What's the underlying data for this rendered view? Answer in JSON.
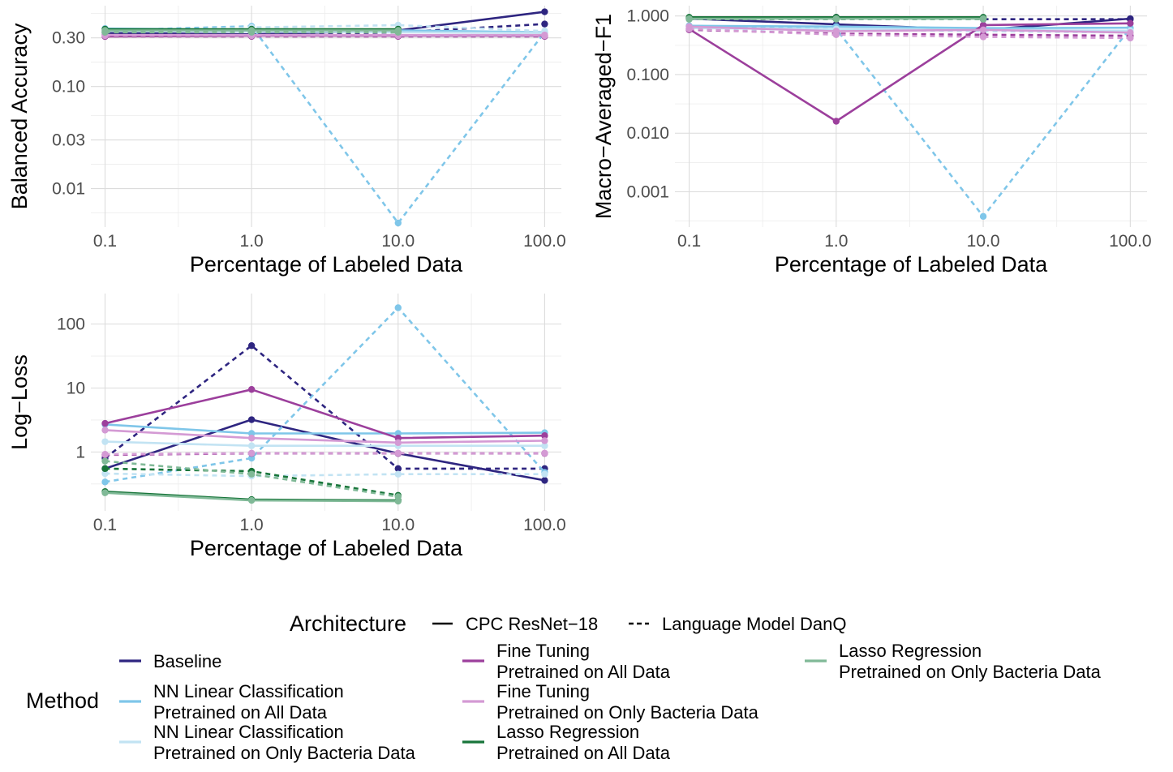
{
  "colors": {
    "Baseline": "#2e2580",
    "NN Linear Classification Pretrained on All Data": "#7fc6e9",
    "NN Linear Classification Pretrained on Only Bacteria Data": "#c2e3f3",
    "Fine Tuning Pretrained on All Data": "#9c3f9c",
    "Fine Tuning Pretrained on Only Bacteria Data": "#d49ad4",
    "Lasso Regression Pretrained on All Data": "#18753a",
    "Lasso Regression Pretrained on Only Bacteria Data": "#80b997"
  },
  "legend": {
    "architecture_title": "Architecture",
    "architecture_items": [
      {
        "label": "CPC ResNet−18",
        "dash": "solid"
      },
      {
        "label": "Language Model DanQ",
        "dash": "dashed"
      }
    ],
    "method_title": "Method",
    "method_items": [
      {
        "key": "Baseline",
        "lines": [
          "Baseline"
        ]
      },
      {
        "key": "NN Linear Classification Pretrained on All Data",
        "lines": [
          "NN Linear Classification",
          "Pretrained on All Data"
        ]
      },
      {
        "key": "NN Linear Classification Pretrained on Only Bacteria Data",
        "lines": [
          "NN Linear Classification",
          "Pretrained on Only Bacteria Data"
        ]
      },
      {
        "key": "Fine Tuning Pretrained on All Data",
        "lines": [
          "Fine Tuning",
          "Pretrained on All Data"
        ]
      },
      {
        "key": "Fine Tuning Pretrained on Only Bacteria Data",
        "lines": [
          "Fine Tuning",
          "Pretrained on Only Bacteria Data"
        ]
      },
      {
        "key": "Lasso Regression Pretrained on All Data",
        "lines": [
          "Lasso Regression",
          "Pretrained on All Data"
        ]
      },
      {
        "key": "Lasso Regression Pretrained on Only Bacteria Data",
        "lines": [
          "Lasso Regression",
          "Pretrained on Only Bacteria Data"
        ]
      }
    ]
  },
  "chart_data": [
    {
      "type": "line",
      "xlabel": "Percentage of Labeled Data",
      "ylabel": "Balanced Accuracy",
      "xscale": "log",
      "yscale": "log",
      "xlim": [
        0.08,
        130
      ],
      "ylim": [
        0.0042,
        0.62
      ],
      "xticks": [
        0.1,
        1,
        10,
        100
      ],
      "xtick_labels": [
        "0.1",
        "1.0",
        "10.0",
        "100.0"
      ],
      "yticks": [
        0.01,
        0.03,
        0.1,
        0.3
      ],
      "ytick_labels": [
        "0.01",
        "0.03",
        "0.10",
        "0.30"
      ],
      "grid": true,
      "series": [
        {
          "method": "Baseline",
          "arch": "CPC ResNet−18",
          "x": [
            0.1,
            1,
            10,
            100
          ],
          "y": [
            0.335,
            0.325,
            0.355,
            0.54
          ]
        },
        {
          "method": "Baseline",
          "arch": "Language Model DanQ",
          "x": [
            0.1,
            1,
            10,
            100
          ],
          "y": [
            0.325,
            0.32,
            0.34,
            0.41
          ]
        },
        {
          "method": "NN Linear Classification Pretrained on All Data",
          "arch": "CPC ResNet−18",
          "x": [
            0.1,
            1,
            10,
            100
          ],
          "y": [
            0.37,
            0.36,
            0.355,
            0.34
          ]
        },
        {
          "method": "NN Linear Classification Pretrained on All Data",
          "arch": "Language Model DanQ",
          "x": [
            0.1,
            1,
            10,
            100
          ],
          "y": [
            0.355,
            0.39,
            0.0046,
            0.34
          ]
        },
        {
          "method": "NN Linear Classification Pretrained on Only Bacteria Data",
          "arch": "CPC ResNet−18",
          "x": [
            0.1,
            1,
            10,
            100
          ],
          "y": [
            0.35,
            0.345,
            0.34,
            0.335
          ]
        },
        {
          "method": "NN Linear Classification Pretrained on Only Bacteria Data",
          "arch": "Language Model DanQ",
          "x": [
            0.1,
            1,
            10,
            100
          ],
          "y": [
            0.34,
            0.38,
            0.4,
            0.35
          ]
        },
        {
          "method": "Fine Tuning Pretrained on All Data",
          "arch": "CPC ResNet−18",
          "x": [
            0.1,
            1,
            10,
            100
          ],
          "y": [
            0.31,
            0.315,
            0.315,
            0.315
          ]
        },
        {
          "method": "Fine Tuning Pretrained on All Data",
          "arch": "Language Model DanQ",
          "x": [
            0.1,
            1,
            10,
            100
          ],
          "y": [
            0.31,
            0.31,
            0.31,
            0.31
          ]
        },
        {
          "method": "Fine Tuning Pretrained on Only Bacteria Data",
          "arch": "CPC ResNet−18",
          "x": [
            0.1,
            1,
            10,
            100
          ],
          "y": [
            0.32,
            0.32,
            0.32,
            0.32
          ]
        },
        {
          "method": "Fine Tuning Pretrained on Only Bacteria Data",
          "arch": "Language Model DanQ",
          "x": [
            0.1,
            1,
            10,
            100
          ],
          "y": [
            0.315,
            0.315,
            0.315,
            0.315
          ]
        },
        {
          "method": "Lasso Regression Pretrained on All Data",
          "arch": "CPC ResNet−18",
          "x": [
            0.1,
            1,
            10
          ],
          "y": [
            0.365,
            0.365,
            0.365
          ]
        },
        {
          "method": "Lasso Regression Pretrained on All Data",
          "arch": "Language Model DanQ",
          "x": [
            0.1,
            1,
            10
          ],
          "y": [
            0.345,
            0.345,
            0.35
          ]
        },
        {
          "method": "Lasso Regression Pretrained on Only Bacteria Data",
          "arch": "CPC ResNet−18",
          "x": [
            0.1,
            1,
            10
          ],
          "y": [
            0.355,
            0.355,
            0.355
          ]
        },
        {
          "method": "Lasso Regression Pretrained on Only Bacteria Data",
          "arch": "Language Model DanQ",
          "x": [
            0.1,
            1,
            10
          ],
          "y": [
            0.34,
            0.34,
            0.34
          ]
        }
      ]
    },
    {
      "type": "line",
      "xlabel": "Percentage of Labeled Data",
      "ylabel": "Macro−Averaged−F1",
      "xscale": "log",
      "yscale": "log",
      "xlim": [
        0.08,
        130
      ],
      "ylim": [
        0.00025,
        1.5
      ],
      "xticks": [
        0.1,
        1,
        10,
        100
      ],
      "xtick_labels": [
        "0.1",
        "1.0",
        "10.0",
        "100.0"
      ],
      "yticks": [
        0.001,
        0.01,
        0.1,
        1
      ],
      "ytick_labels": [
        "0.001",
        "0.010",
        "0.100",
        "1.000"
      ],
      "grid": true,
      "series": [
        {
          "method": "Baseline",
          "arch": "CPC ResNet−18",
          "x": [
            0.1,
            1,
            10,
            100
          ],
          "y": [
            0.9,
            0.72,
            0.58,
            0.9
          ]
        },
        {
          "method": "Baseline",
          "arch": "Language Model DanQ",
          "x": [
            0.1,
            1,
            10,
            100
          ],
          "y": [
            0.92,
            0.95,
            0.88,
            0.88
          ]
        },
        {
          "method": "NN Linear Classification Pretrained on All Data",
          "arch": "CPC ResNet−18",
          "x": [
            0.1,
            1,
            10,
            100
          ],
          "y": [
            0.68,
            0.66,
            0.62,
            0.63
          ]
        },
        {
          "method": "NN Linear Classification Pretrained on All Data",
          "arch": "Language Model DanQ",
          "x": [
            0.1,
            1,
            10,
            100
          ],
          "y": [
            0.68,
            0.6,
            0.00038,
            0.62
          ]
        },
        {
          "method": "NN Linear Classification Pretrained on Only Bacteria Data",
          "arch": "CPC ResNet−18",
          "x": [
            0.1,
            1,
            10,
            100
          ],
          "y": [
            0.62,
            0.6,
            0.58,
            0.56
          ]
        },
        {
          "method": "NN Linear Classification Pretrained on Only Bacteria Data",
          "arch": "Language Model DanQ",
          "x": [
            0.1,
            1,
            10,
            100
          ],
          "y": [
            0.6,
            0.58,
            0.55,
            0.52
          ]
        },
        {
          "method": "Fine Tuning Pretrained on All Data",
          "arch": "CPC ResNet−18",
          "x": [
            0.1,
            1,
            10,
            100
          ],
          "y": [
            0.6,
            0.016,
            0.7,
            0.75
          ]
        },
        {
          "method": "Fine Tuning Pretrained on All Data",
          "arch": "Language Model DanQ",
          "x": [
            0.1,
            1,
            10,
            100
          ],
          "y": [
            0.58,
            0.5,
            0.48,
            0.46
          ]
        },
        {
          "method": "Fine Tuning Pretrained on Only Bacteria Data",
          "arch": "CPC ResNet−18",
          "x": [
            0.1,
            1,
            10,
            100
          ],
          "y": [
            0.66,
            0.55,
            0.58,
            0.52
          ]
        },
        {
          "method": "Fine Tuning Pretrained on Only Bacteria Data",
          "arch": "Language Model DanQ",
          "x": [
            0.1,
            1,
            10,
            100
          ],
          "y": [
            0.6,
            0.48,
            0.44,
            0.42
          ]
        },
        {
          "method": "Lasso Regression Pretrained on All Data",
          "arch": "CPC ResNet−18",
          "x": [
            0.1,
            1,
            10
          ],
          "y": [
            0.95,
            0.95,
            0.95
          ]
        },
        {
          "method": "Lasso Regression Pretrained on All Data",
          "arch": "Language Model DanQ",
          "x": [
            0.1,
            1,
            10
          ],
          "y": [
            0.93,
            0.93,
            0.93
          ]
        },
        {
          "method": "Lasso Regression Pretrained on Only Bacteria Data",
          "arch": "CPC ResNet−18",
          "x": [
            0.1,
            1,
            10
          ],
          "y": [
            0.9,
            0.9,
            0.9
          ]
        },
        {
          "method": "Lasso Regression Pretrained on Only Bacteria Data",
          "arch": "Language Model DanQ",
          "x": [
            0.1,
            1,
            10
          ],
          "y": [
            0.88,
            0.88,
            0.88
          ]
        }
      ]
    },
    {
      "type": "line",
      "xlabel": "Percentage of Labeled Data",
      "ylabel": "Log−Loss",
      "xscale": "log",
      "yscale": "log",
      "xlim": [
        0.08,
        130
      ],
      "ylim": [
        0.12,
        300
      ],
      "xticks": [
        0.1,
        1,
        10,
        100
      ],
      "xtick_labels": [
        "0.1",
        "1.0",
        "10.0",
        "100.0"
      ],
      "yticks": [
        1,
        10,
        100
      ],
      "ytick_labels": [
        "1",
        "10",
        "100"
      ],
      "grid": true,
      "series": [
        {
          "method": "Baseline",
          "arch": "CPC ResNet−18",
          "x": [
            0.1,
            1,
            10,
            100
          ],
          "y": [
            0.55,
            3.2,
            0.95,
            0.36
          ]
        },
        {
          "method": "Baseline",
          "arch": "Language Model DanQ",
          "x": [
            0.1,
            1,
            10,
            100
          ],
          "y": [
            0.8,
            46,
            0.55,
            0.55
          ]
        },
        {
          "method": "NN Linear Classification Pretrained on All Data",
          "arch": "CPC ResNet−18",
          "x": [
            0.1,
            1,
            10,
            100
          ],
          "y": [
            2.7,
            1.95,
            1.95,
            2.0
          ]
        },
        {
          "method": "NN Linear Classification Pretrained on All Data",
          "arch": "Language Model DanQ",
          "x": [
            0.1,
            1,
            10,
            100
          ],
          "y": [
            0.34,
            0.8,
            180,
            0.48
          ]
        },
        {
          "method": "NN Linear Classification Pretrained on Only Bacteria Data",
          "arch": "CPC ResNet−18",
          "x": [
            0.1,
            1,
            10,
            100
          ],
          "y": [
            1.45,
            1.25,
            1.25,
            1.25
          ]
        },
        {
          "method": "NN Linear Classification Pretrained on Only Bacteria Data",
          "arch": "Language Model DanQ",
          "x": [
            0.1,
            1,
            10,
            100
          ],
          "y": [
            0.46,
            0.42,
            0.45,
            0.45
          ]
        },
        {
          "method": "Fine Tuning Pretrained on All Data",
          "arch": "CPC ResNet−18",
          "x": [
            0.1,
            1,
            10,
            100
          ],
          "y": [
            2.8,
            9.5,
            1.65,
            1.8
          ]
        },
        {
          "method": "Fine Tuning Pretrained on All Data",
          "arch": "Language Model DanQ",
          "x": [
            0.1,
            1,
            10,
            100
          ],
          "y": [
            0.9,
            0.95,
            0.95,
            0.95
          ]
        },
        {
          "method": "Fine Tuning Pretrained on Only Bacteria Data",
          "arch": "CPC ResNet−18",
          "x": [
            0.1,
            1,
            10,
            100
          ],
          "y": [
            2.2,
            1.65,
            1.4,
            1.5
          ]
        },
        {
          "method": "Fine Tuning Pretrained on Only Bacteria Data",
          "arch": "Language Model DanQ",
          "x": [
            0.1,
            1,
            10,
            100
          ],
          "y": [
            0.92,
            0.96,
            0.96,
            0.96
          ]
        },
        {
          "method": "Lasso Regression Pretrained on All Data",
          "arch": "CPC ResNet−18",
          "x": [
            0.1,
            1,
            10
          ],
          "y": [
            0.24,
            0.18,
            0.175
          ]
        },
        {
          "method": "Lasso Regression Pretrained on All Data",
          "arch": "Language Model DanQ",
          "x": [
            0.1,
            1,
            10
          ],
          "y": [
            0.55,
            0.5,
            0.21
          ]
        },
        {
          "method": "Lasso Regression Pretrained on Only Bacteria Data",
          "arch": "CPC ResNet−18",
          "x": [
            0.1,
            1,
            10
          ],
          "y": [
            0.23,
            0.175,
            0.17
          ]
        },
        {
          "method": "Lasso Regression Pretrained on Only Bacteria Data",
          "arch": "Language Model DanQ",
          "x": [
            0.1,
            1,
            10
          ],
          "y": [
            0.72,
            0.45,
            0.2
          ]
        }
      ]
    }
  ]
}
